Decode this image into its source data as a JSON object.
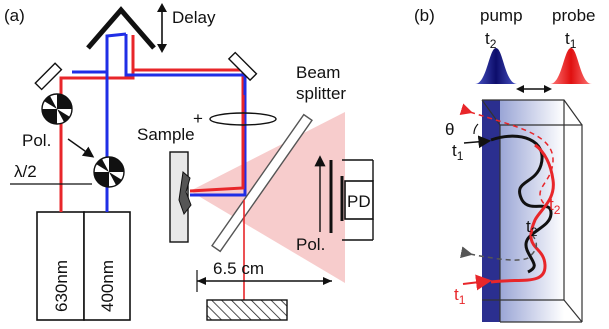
{
  "panel_a": {
    "panel_label": "(a)",
    "delay_label": "Delay",
    "beam_splitter_label_1": "Beam",
    "beam_splitter_label_2": "splitter",
    "sample_label": "Sample",
    "polarizer_label_left": "Pol.",
    "lambda_half": "λ/2",
    "pd_label": "PD",
    "polarizer_label_right": "Pol.",
    "distance_label": "6.5 cm",
    "laser_630": "630nm",
    "laser_400": "400nm",
    "plus_sign": "+"
  },
  "panel_b": {
    "panel_label": "(b)",
    "pump_label": "pump",
    "probe_label": "probe",
    "pump_time": "t",
    "pump_time_sub": "2",
    "probe_time": "t",
    "probe_time_sub": "1",
    "theta_label": "θ",
    "t1_upper": "t",
    "t1_upper_sub": "1",
    "t2_red": "t",
    "t2_red_sub": "2",
    "t2_black": "t",
    "t2_black_sub": "2",
    "t1_lower": "t",
    "t1_lower_sub": "1"
  },
  "colors": {
    "red_beam": "#e8262a",
    "blue_beam": "#1f2ee6",
    "pump_pulse": "#1e1e8c",
    "probe_pulse": "#e82020",
    "light_cone": "#f6c7c7",
    "crystal_face": "#2b2f8f"
  }
}
